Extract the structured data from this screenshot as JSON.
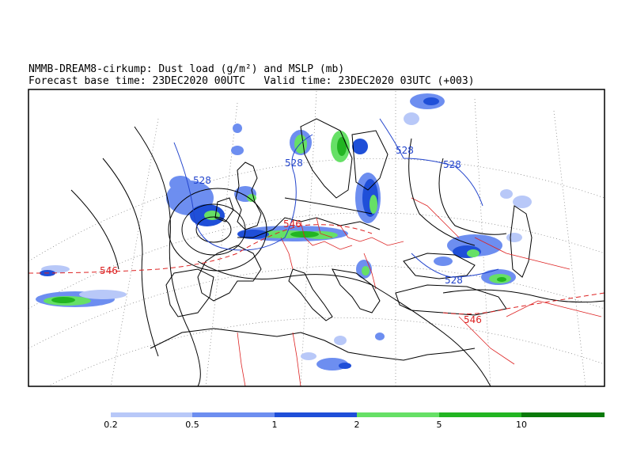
{
  "title": {
    "line1": "NMMB-DREAM8-cirkump: Dust load (g/m²) and MSLP (mb)",
    "line2": "Forecast base time: 23DEC2020 00UTC   Valid time: 23DEC2020 03UTC (+003)"
  },
  "colors": {
    "level_1": "#b8c8f8",
    "level_2": "#6d8ef0",
    "level_3": "#1f4fd8",
    "level_4": "#66e066",
    "level_5": "#22b522",
    "level_6": "#0a7a0a",
    "isobar": "#000000",
    "height_contour_528": "#2244cc",
    "height_contour_546": "#dd2222",
    "coastline": "#000000",
    "borders": "#dd2222",
    "graticule": "#777777"
  },
  "colorbar": {
    "ticks": [
      "0.2",
      "0.5",
      "1",
      "2",
      "5",
      "10"
    ]
  },
  "contour_labels": {
    "blue": [
      "528",
      "528",
      "528",
      "528",
      "528"
    ],
    "red": [
      "546",
      "546",
      "546"
    ]
  }
}
